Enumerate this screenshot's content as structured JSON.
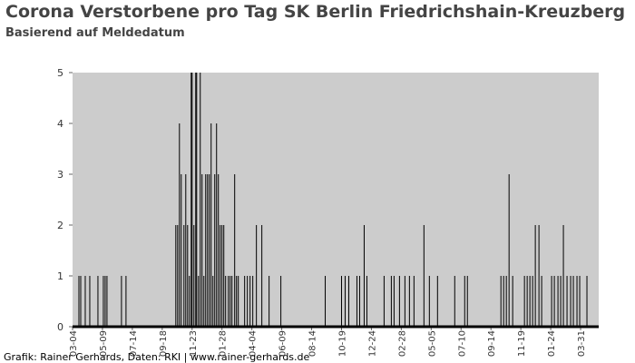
{
  "chart_data": {
    "type": "bar",
    "title": "Corona Verstorbene pro Tag SK Berlin Friedrichshain-Kreuzberg",
    "subtitle": "Basierend auf Meldedatum",
    "credit": "Grafik: Rainer Gerhards, Daten: RKI | www.rainer-gerhards.de",
    "color": "#000000",
    "background": "#cccccc",
    "grid": false,
    "x": [
      14,
      18,
      28,
      38,
      56,
      68,
      72,
      76,
      108,
      118,
      228,
      232,
      236,
      240,
      246,
      250,
      254,
      258,
      262,
      264,
      268,
      272,
      274,
      278,
      282,
      286,
      290,
      294,
      298,
      302,
      306,
      310,
      314,
      318,
      322,
      326,
      330,
      334,
      338,
      344,
      348,
      352,
      358,
      362,
      366,
      380,
      386,
      392,
      398,
      406,
      418,
      434,
      460,
      558,
      594,
      602,
      610,
      628,
      634,
      644,
      650,
      688,
      704,
      710,
      722,
      734,
      744,
      754,
      776,
      788,
      806,
      844,
      866,
      872,
      946,
      952,
      958,
      964,
      972,
      998,
      1004,
      1010,
      1016,
      1022,
      1030,
      1036,
      1058,
      1064,
      1072,
      1078,
      1084,
      1092,
      1100,
      1106,
      1114,
      1120,
      1136
    ],
    "values": [
      1,
      1,
      1,
      1,
      1,
      1,
      1,
      1,
      1,
      1,
      2,
      2,
      4,
      3,
      2,
      3,
      2,
      1,
      5,
      5,
      2,
      5,
      5,
      1,
      5,
      3,
      1,
      3,
      3,
      3,
      4,
      1,
      3,
      4,
      3,
      2,
      2,
      2,
      1,
      1,
      1,
      1,
      3,
      1,
      1,
      1,
      1,
      1,
      1,
      2,
      2,
      1,
      1,
      1,
      1,
      1,
      1,
      1,
      1,
      2,
      1,
      1,
      1,
      1,
      1,
      1,
      1,
      1,
      2,
      1,
      1,
      1,
      1,
      1,
      1,
      1,
      1,
      3,
      1,
      1,
      1,
      1,
      1,
      2,
      2,
      1,
      1,
      1,
      1,
      1,
      2,
      1,
      1,
      1,
      1,
      1,
      1
    ],
    "xlim": [
      0,
      1162
    ],
    "xticks": [
      {
        "value": 0,
        "label": "03-04"
      },
      {
        "value": 66,
        "label": "05-09"
      },
      {
        "value": 132,
        "label": "07-14"
      },
      {
        "value": 198,
        "label": "09-18"
      },
      {
        "value": 264,
        "label": "11-23"
      },
      {
        "value": 330,
        "label": "01-28"
      },
      {
        "value": 396,
        "label": "04-04"
      },
      {
        "value": 462,
        "label": "06-09"
      },
      {
        "value": 528,
        "label": "08-14"
      },
      {
        "value": 594,
        "label": "10-19"
      },
      {
        "value": 660,
        "label": "12-24"
      },
      {
        "value": 726,
        "label": "02-28"
      },
      {
        "value": 792,
        "label": "05-05"
      },
      {
        "value": 858,
        "label": "07-10"
      },
      {
        "value": 924,
        "label": "09-14"
      },
      {
        "value": 990,
        "label": "11-19"
      },
      {
        "value": 1056,
        "label": "01-24"
      },
      {
        "value": 1122,
        "label": "03-31"
      }
    ],
    "ylim": [
      0,
      5
    ],
    "yticks": [
      0,
      1,
      2,
      3,
      4,
      5
    ]
  }
}
